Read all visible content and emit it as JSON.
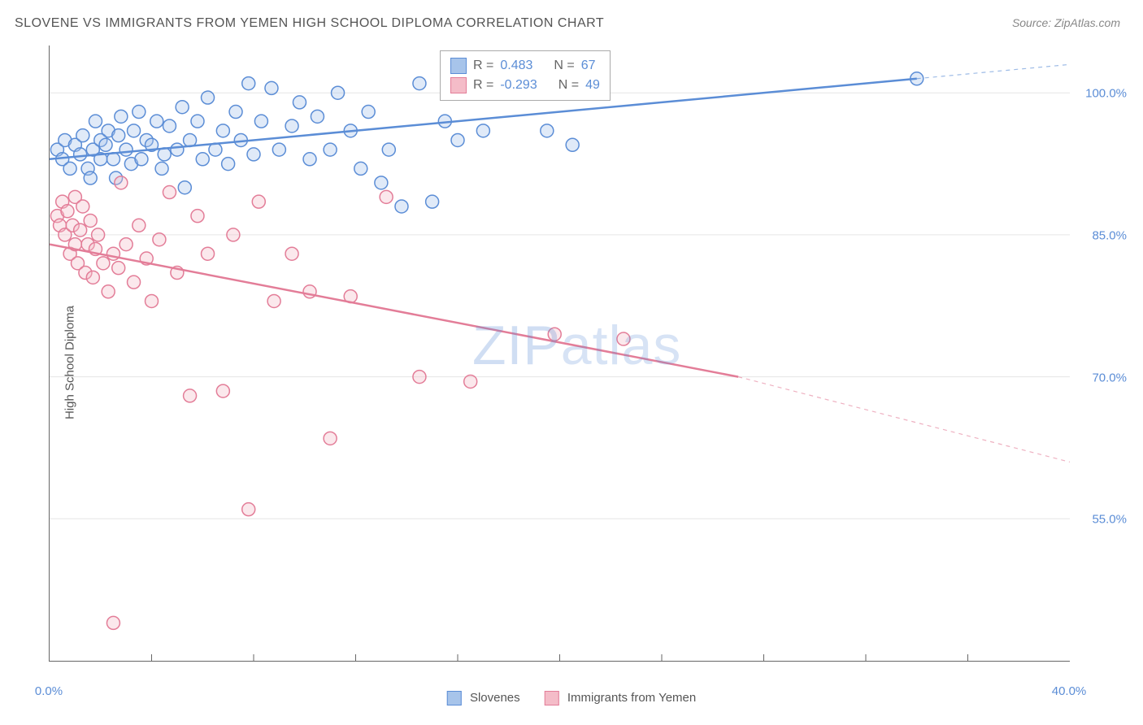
{
  "title": "SLOVENE VS IMMIGRANTS FROM YEMEN HIGH SCHOOL DIPLOMA CORRELATION CHART",
  "source_label": "Source: ZipAtlas.com",
  "ylabel": "High School Diploma",
  "watermark": "ZIPatlas",
  "chart": {
    "type": "scatter",
    "xlim": [
      0,
      40
    ],
    "ylim": [
      40,
      105
    ],
    "x_ticks_major": [
      0,
      40
    ],
    "x_ticks_minor": [
      4,
      8,
      12,
      16,
      20,
      24,
      28,
      32,
      36
    ],
    "y_ticks": [
      55,
      70,
      85,
      100
    ],
    "x_tick_labels": {
      "0": "0.0%",
      "40": "40.0%"
    },
    "y_tick_labels": {
      "55": "55.0%",
      "70": "70.0%",
      "85": "85.0%",
      "100": "100.0%"
    },
    "grid_color": "#e5e5e5",
    "background": "#ffffff",
    "axis_color": "#666666",
    "marker_radius": 8,
    "marker_fill_opacity": 0.35,
    "marker_stroke_width": 1.5,
    "trend_line_width": 2.5
  },
  "series": [
    {
      "id": "slovenes",
      "label": "Slovenes",
      "color_fill": "#a7c4ea",
      "color_stroke": "#5b8dd6",
      "R": "0.483",
      "N": "67",
      "trend": {
        "x1": 0,
        "y1": 93,
        "x2": 34,
        "y2": 101.5,
        "extrapolate_to": 40,
        "extrap_y": 103
      },
      "points": [
        [
          0.3,
          94
        ],
        [
          0.5,
          93
        ],
        [
          0.6,
          95
        ],
        [
          0.8,
          92
        ],
        [
          1.0,
          94.5
        ],
        [
          1.2,
          93.5
        ],
        [
          1.3,
          95.5
        ],
        [
          1.5,
          92
        ],
        [
          1.6,
          91
        ],
        [
          1.7,
          94
        ],
        [
          1.8,
          97
        ],
        [
          2.0,
          93
        ],
        [
          2.0,
          95
        ],
        [
          2.2,
          94.5
        ],
        [
          2.3,
          96
        ],
        [
          2.5,
          93
        ],
        [
          2.6,
          91
        ],
        [
          2.7,
          95.5
        ],
        [
          2.8,
          97.5
        ],
        [
          3.0,
          94
        ],
        [
          3.2,
          92.5
        ],
        [
          3.3,
          96
        ],
        [
          3.5,
          98
        ],
        [
          3.6,
          93
        ],
        [
          3.8,
          95
        ],
        [
          4.0,
          94.5
        ],
        [
          4.2,
          97
        ],
        [
          4.4,
          92
        ],
        [
          4.5,
          93.5
        ],
        [
          4.7,
          96.5
        ],
        [
          5.0,
          94
        ],
        [
          5.2,
          98.5
        ],
        [
          5.3,
          90
        ],
        [
          5.5,
          95
        ],
        [
          5.8,
          97
        ],
        [
          6.0,
          93
        ],
        [
          6.2,
          99.5
        ],
        [
          6.5,
          94
        ],
        [
          6.8,
          96
        ],
        [
          7.0,
          92.5
        ],
        [
          7.3,
          98
        ],
        [
          7.5,
          95
        ],
        [
          7.8,
          101
        ],
        [
          8.0,
          93.5
        ],
        [
          8.3,
          97
        ],
        [
          8.7,
          100.5
        ],
        [
          9.0,
          94
        ],
        [
          9.5,
          96.5
        ],
        [
          9.8,
          99
        ],
        [
          10.2,
          93
        ],
        [
          10.5,
          97.5
        ],
        [
          11.0,
          94
        ],
        [
          11.3,
          100
        ],
        [
          11.8,
          96
        ],
        [
          12.2,
          92
        ],
        [
          12.5,
          98
        ],
        [
          13.0,
          90.5
        ],
        [
          13.3,
          94
        ],
        [
          13.8,
          88
        ],
        [
          14.5,
          101
        ],
        [
          15.0,
          88.5
        ],
        [
          15.5,
          97
        ],
        [
          16.0,
          95
        ],
        [
          17.0,
          96
        ],
        [
          19.5,
          96
        ],
        [
          20.5,
          94.5
        ],
        [
          34.0,
          101.5
        ]
      ]
    },
    {
      "id": "yemen",
      "label": "Immigrants from Yemen",
      "color_fill": "#f4bcc8",
      "color_stroke": "#e37d98",
      "R": "-0.293",
      "N": "49",
      "trend": {
        "x1": 0,
        "y1": 84,
        "x2": 27,
        "y2": 70,
        "extrapolate_to": 40,
        "extrap_y": 61
      },
      "points": [
        [
          0.3,
          87
        ],
        [
          0.4,
          86
        ],
        [
          0.5,
          88.5
        ],
        [
          0.6,
          85
        ],
        [
          0.7,
          87.5
        ],
        [
          0.8,
          83
        ],
        [
          0.9,
          86
        ],
        [
          1.0,
          84
        ],
        [
          1.0,
          89
        ],
        [
          1.1,
          82
        ],
        [
          1.2,
          85.5
        ],
        [
          1.3,
          88
        ],
        [
          1.4,
          81
        ],
        [
          1.5,
          84
        ],
        [
          1.6,
          86.5
        ],
        [
          1.7,
          80.5
        ],
        [
          1.8,
          83.5
        ],
        [
          1.9,
          85
        ],
        [
          2.1,
          82
        ],
        [
          2.3,
          79
        ],
        [
          2.5,
          83
        ],
        [
          2.7,
          81.5
        ],
        [
          2.8,
          90.5
        ],
        [
          3.0,
          84
        ],
        [
          3.3,
          80
        ],
        [
          3.5,
          86
        ],
        [
          3.8,
          82.5
        ],
        [
          4.0,
          78
        ],
        [
          4.3,
          84.5
        ],
        [
          4.7,
          89.5
        ],
        [
          5.0,
          81
        ],
        [
          5.5,
          68
        ],
        [
          5.8,
          87
        ],
        [
          6.2,
          83
        ],
        [
          6.8,
          68.5
        ],
        [
          7.2,
          85
        ],
        [
          7.8,
          56
        ],
        [
          8.2,
          88.5
        ],
        [
          8.8,
          78
        ],
        [
          9.5,
          83
        ],
        [
          10.2,
          79
        ],
        [
          11.0,
          63.5
        ],
        [
          11.8,
          78.5
        ],
        [
          13.2,
          89
        ],
        [
          14.5,
          70
        ],
        [
          16.5,
          69.5
        ],
        [
          19.8,
          74.5
        ],
        [
          22.5,
          74
        ],
        [
          2.5,
          44
        ]
      ]
    }
  ],
  "stats_box": {
    "R_label": "R =",
    "N_label": "N ="
  },
  "legend": {
    "series1": "Slovenes",
    "series2": "Immigrants from Yemen"
  }
}
